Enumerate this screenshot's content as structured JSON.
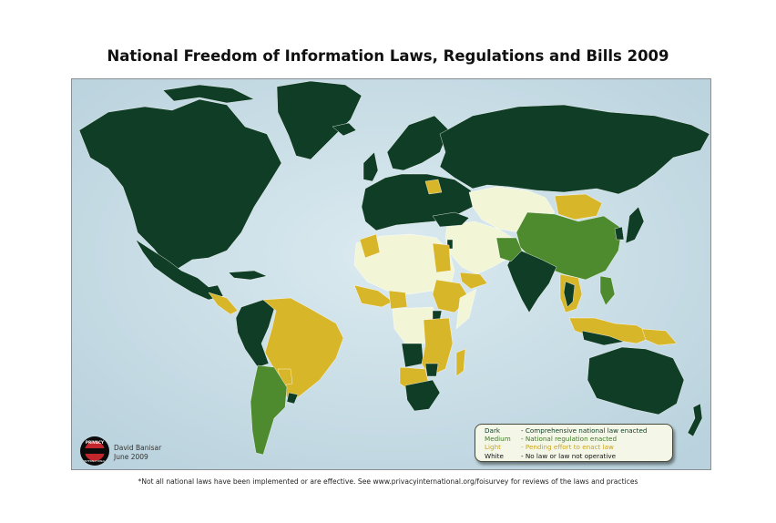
{
  "title": "National Freedom of Information Laws, Regulations and Bills 2009",
  "colors": {
    "ocean": "#c9dfe8",
    "dark": "#0f3d25",
    "medium": "#4e8a2e",
    "light": "#d8b62a",
    "white": "#f2f6d6"
  },
  "legend": {
    "items": [
      {
        "key": "Dark",
        "desc": "- Comprehensive national law enacted",
        "color": "#0f3d25"
      },
      {
        "key": "Medium",
        "desc": "- National regulation enacted",
        "color": "#3f7a23"
      },
      {
        "key": "Light",
        "desc": "- Pending effort to enact law",
        "color": "#c9a41c"
      },
      {
        "key": "White",
        "desc": "- No law or law not operative",
        "color": "#111111"
      }
    ]
  },
  "logo": {
    "text_top": "PRIVACY",
    "text_bottom": "INTERNATIONAL",
    "icon": "privacy-international-logo"
  },
  "credit": {
    "author": "David Banisar",
    "date": "June 2009"
  },
  "footnote": "*Not all national laws have been implemented or are effective. See www.privacyinternational.org/foisurvey for reviews of the laws and practices"
}
